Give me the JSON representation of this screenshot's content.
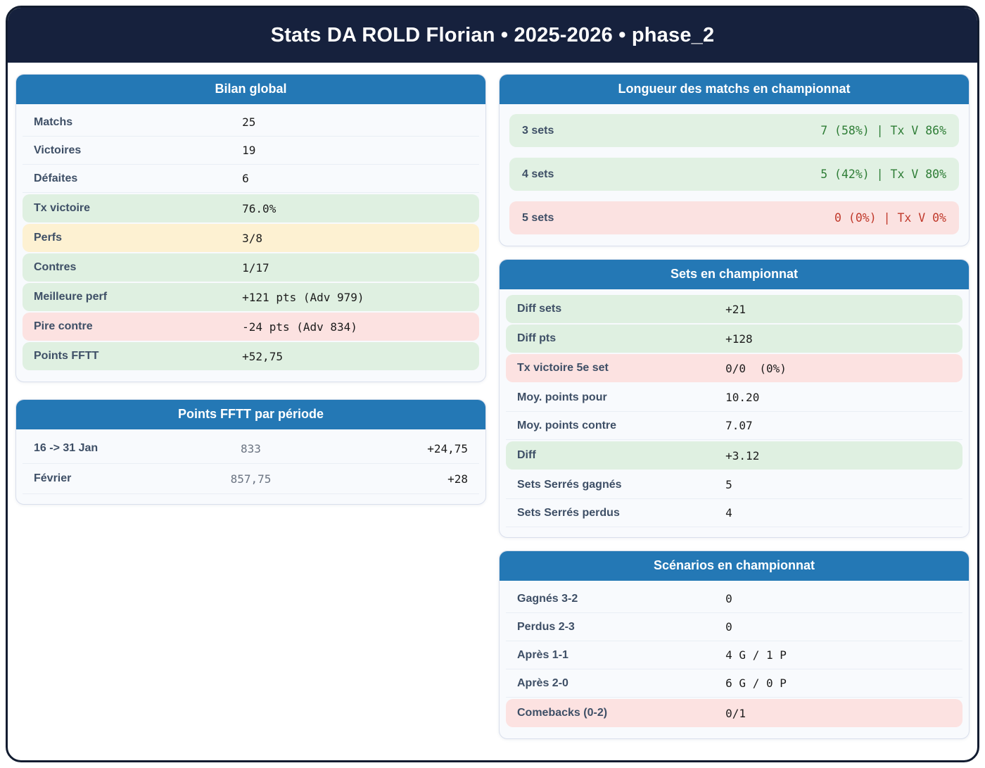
{
  "header": {
    "title": "Stats DA ROLD Florian • 2025-2026 • phase_2"
  },
  "colors": {
    "page_border": "#121c30",
    "header_bg": "#16213d",
    "card_header_bg": "#2478b5",
    "green_bg": "#dff0e1",
    "yellow_bg": "#fdf1d2",
    "red_bg": "#fce2e1",
    "green_text": "#2e7d36",
    "red_text": "#c0392b"
  },
  "cards": {
    "bilan": {
      "title": "Bilan global",
      "rows": [
        {
          "label": "Matchs",
          "value": "25",
          "tone": "none"
        },
        {
          "label": "Victoires",
          "value": "19",
          "tone": "none"
        },
        {
          "label": "Défaites",
          "value": "6",
          "tone": "none"
        },
        {
          "label": "Tx victoire",
          "value": "76.0%",
          "tone": "green"
        },
        {
          "label": "Perfs",
          "value": "3/8",
          "tone": "yellow"
        },
        {
          "label": "Contres",
          "value": "1/17",
          "tone": "green"
        },
        {
          "label": "Meilleure perf",
          "value": "+121 pts (Adv 979)",
          "tone": "green"
        },
        {
          "label": "Pire contre",
          "value": "-24 pts (Adv 834)",
          "tone": "red"
        },
        {
          "label": "Points FFTT",
          "value": "+52,75",
          "tone": "green"
        }
      ]
    },
    "periodes": {
      "title": "Points FFTT par période",
      "rows": [
        {
          "label": "16 -> 31 Jan",
          "mid": "833",
          "value": "+24,75"
        },
        {
          "label": "Février",
          "mid": "857,75",
          "value": "+28"
        }
      ]
    },
    "longueur": {
      "title": "Longueur des matchs en championnat",
      "rows": [
        {
          "label": "3 sets",
          "value": "7 (58%) | Tx V 86%",
          "tone": "green"
        },
        {
          "label": "4 sets",
          "value": "5 (42%) | Tx V 80%",
          "tone": "green"
        },
        {
          "label": "5 sets",
          "value": "0 (0%) | Tx V 0%",
          "tone": "red"
        }
      ]
    },
    "sets": {
      "title": "Sets en championnat",
      "rows": [
        {
          "label": "Diff sets",
          "value": "+21",
          "tone": "green"
        },
        {
          "label": "Diff pts",
          "value": "+128",
          "tone": "green"
        },
        {
          "label": "Tx victoire 5e set",
          "value": "0/0  (0%)",
          "tone": "red"
        },
        {
          "label": "Moy. points pour",
          "value": "10.20",
          "tone": "none"
        },
        {
          "label": "Moy. points contre",
          "value": "7.07",
          "tone": "none"
        },
        {
          "label": "Diff",
          "value": "+3.12",
          "tone": "green"
        },
        {
          "label": "Sets Serrés gagnés",
          "value": "5",
          "tone": "none"
        },
        {
          "label": "Sets Serrés perdus",
          "value": "4",
          "tone": "none"
        }
      ]
    },
    "scenarios": {
      "title": "Scénarios en championnat",
      "rows": [
        {
          "label": "Gagnés 3-2",
          "value": "0",
          "tone": "none"
        },
        {
          "label": "Perdus 2-3",
          "value": "0",
          "tone": "none"
        },
        {
          "label": "Après 1-1",
          "value": "4 G / 1 P",
          "tone": "none"
        },
        {
          "label": "Après 2-0",
          "value": "6 G / 0 P",
          "tone": "none"
        },
        {
          "label": "Comebacks (0-2)",
          "value": "0/1",
          "tone": "red"
        }
      ]
    }
  }
}
